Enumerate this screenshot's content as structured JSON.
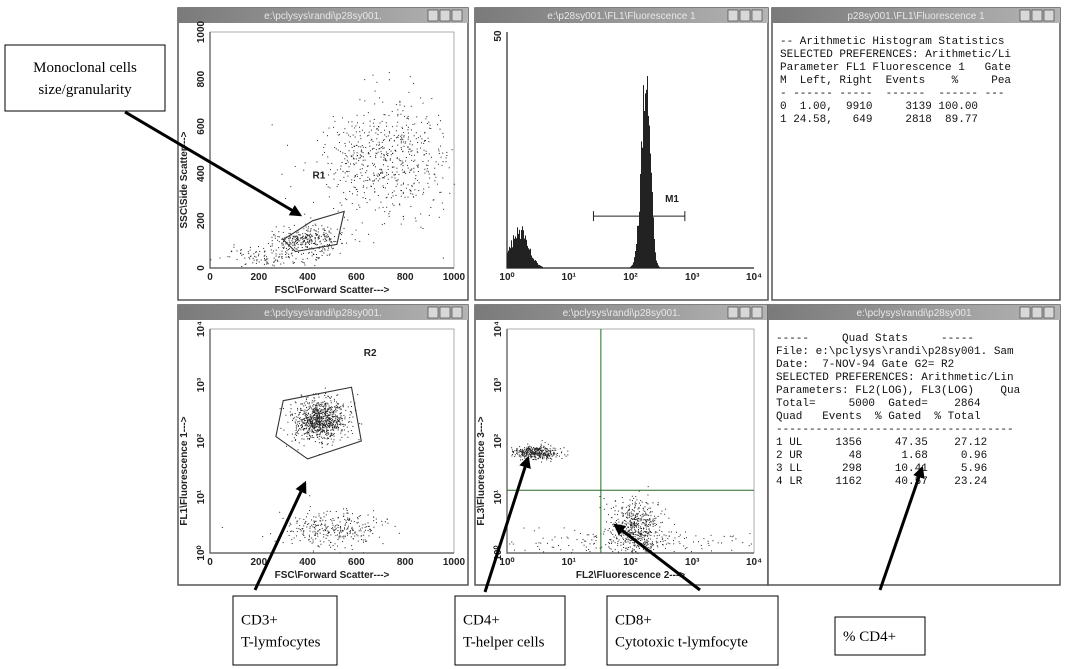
{
  "windows": [
    {
      "kind": "scatter",
      "title": "e:\\pclysys\\randi\\p28sy001.",
      "y_label": "SSC\\Side Scatter--->",
      "x_label": "FSC\\Forward Scatter--->",
      "xticks": [
        "0",
        "200",
        "400",
        "600",
        "800",
        "1000"
      ],
      "yticks": [
        "0",
        "200",
        "400",
        "600",
        "800",
        "1000"
      ],
      "region": "R1"
    },
    {
      "kind": "histogram",
      "title": "e:\\p28sy001.\\FL1\\Fluorescence 1",
      "xticks": [
        "10⁰",
        "10¹",
        "10²",
        "10³",
        "10⁴"
      ],
      "yticks": [
        "50"
      ],
      "region": "M1"
    },
    {
      "kind": "text",
      "title": "p28sy001.\\FL1\\Fluorescence 1",
      "lines": [
        "-- Arithmetic Histogram Statistics",
        "SELECTED PREFERENCES: Arithmetic/Li",
        "Parameter FL1 Fluorescence 1   Gate",
        "M  Left, Right  Events    %     Pea",
        "- ------ -----  ------  ------ ---",
        "0  1.00,  9910     3139 100.00",
        "1 24.58,   649     2818  89.77"
      ]
    },
    {
      "kind": "scatter",
      "title": "e:\\pclysys\\randi\\p28sy001.",
      "y_label": "FL1\\Fluorescence 1--->",
      "x_label": "FSC\\Forward Scatter--->",
      "xticks": [
        "0",
        "200",
        "400",
        "600",
        "800",
        "1000"
      ],
      "yticks": [
        "10⁰",
        "10¹",
        "10²",
        "10³",
        "10⁴"
      ],
      "region": "R2"
    },
    {
      "kind": "quadrant",
      "title": "e:\\pclysys\\randi\\p28sy001.",
      "y_label": "FL3\\Fluorescence 3--->",
      "x_label": "FL2\\Fluorescence 2--->",
      "xticks": [
        "10⁰",
        "10¹",
        "10²",
        "10³",
        "10⁴"
      ],
      "yticks": [
        "10⁰",
        "10¹",
        "10²",
        "10³",
        "10⁴"
      ]
    },
    {
      "kind": "text",
      "title": "e:\\pclysys\\randi\\p28sy001",
      "lines": [
        "-----     Quad Stats     -----",
        "File: e:\\pclysys\\randi\\p28sy001. Sam",
        "Date:  7-NOV-94 Gate G2= R2",
        "SELECTED PREFERENCES: Arithmetic/Lin",
        "Parameters: FL2(LOG), FL3(LOG)    Qua",
        "Total=     5000  Gated=    2864",
        "Quad   Events  % Gated  % Total",
        "------------------------------------",
        "1 UL     1356     47.35    27.12",
        "2 UR       48      1.68     0.96",
        "3 LL      298     10.41     5.96",
        "4 LR     1162     40.57    23.24"
      ]
    }
  ],
  "annotations": [
    {
      "lines": [
        "Monoclonal cells",
        "size/granularity"
      ]
    },
    {
      "lines": [
        "CD3+",
        "T-lymfocytes"
      ]
    },
    {
      "lines": [
        "CD4+",
        "T-helper cells"
      ]
    },
    {
      "lines": [
        "CD8+",
        "Cytotoxic t-lymfocyte"
      ]
    },
    {
      "lines": [
        "% CD4+"
      ]
    }
  ]
}
